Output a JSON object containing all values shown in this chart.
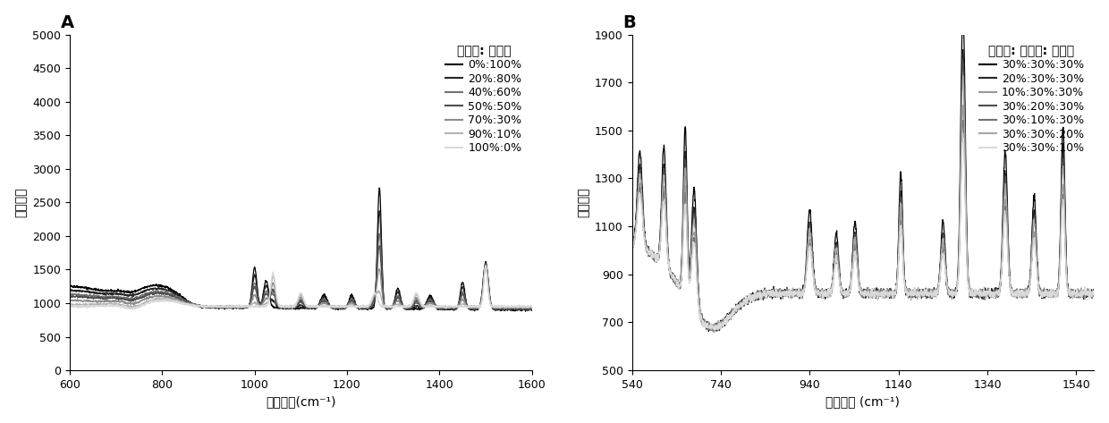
{
  "panel_A": {
    "title": "毒死蝶: 啊虫脂",
    "xlabel": "拉曼位移(cm⁻¹)",
    "ylabel": "拉曼强度",
    "xlim": [
      600,
      1600
    ],
    "ylim": [
      0,
      5000
    ],
    "yticks": [
      0,
      500,
      1000,
      1500,
      2000,
      2500,
      3000,
      3500,
      4000,
      4500,
      5000
    ],
    "xticks": [
      600,
      800,
      1000,
      1200,
      1400,
      1600
    ],
    "legend_labels": [
      "0%:100%",
      "20%:80%",
      "40%:60%",
      "50%:50%",
      "70%:30%",
      "90%:10%",
      "100%:0%"
    ],
    "legend_grays": [
      0.0,
      0.15,
      0.45,
      0.3,
      0.55,
      0.7,
      0.85
    ]
  },
  "panel_B": {
    "title": "福美双: 毒死蝶: 啊虫脂",
    "xlabel": "拉曼位移 (cm⁻¹)",
    "ylabel": "拉曼强度",
    "xlim": [
      540,
      1580
    ],
    "ylim": [
      500,
      1900
    ],
    "yticks": [
      500,
      700,
      900,
      1100,
      1300,
      1500,
      1700,
      1900
    ],
    "xticks": [
      540,
      740,
      940,
      1140,
      1340,
      1540
    ],
    "legend_labels": [
      "30%:30%:30%",
      "20%:30%:30%",
      "10%:30%:30%",
      "30%:20%:30%",
      "30%:10%:30%",
      "30%:30%:20%",
      "30%:30%:10%"
    ],
    "legend_grays": [
      0.0,
      0.15,
      0.6,
      0.3,
      0.45,
      0.65,
      0.85
    ]
  },
  "panel_label_A": "A",
  "panel_label_B": "B",
  "background_color": "#ffffff",
  "line_width": 0.9
}
